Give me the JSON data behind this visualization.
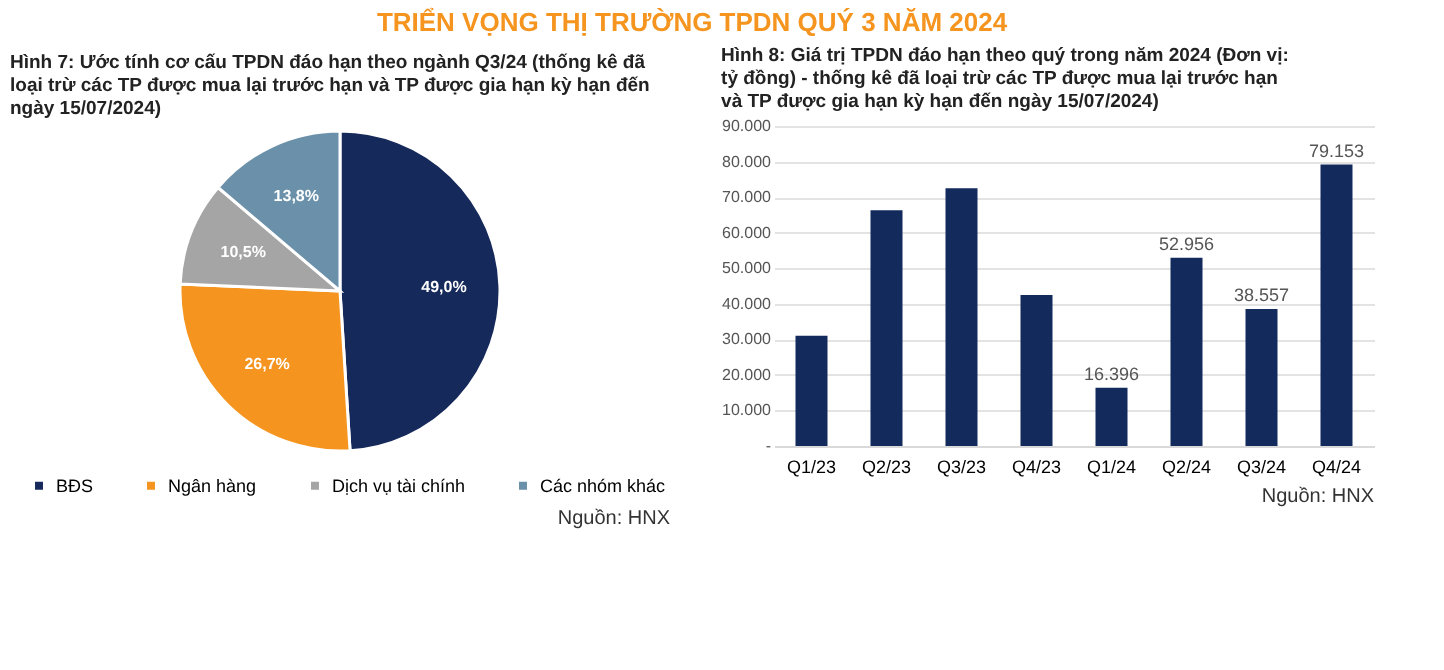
{
  "chart_data": [
    {
      "type": "pie",
      "title": "TRIỂN VỌNG THỊ TRƯỜNG TPDN QUÝ 3 NĂM 2024",
      "subtitle": "Hình 7: Ước tính cơ cấu TPDN đáo hạn theo ngành Q3/24 (thống kê đã loại trừ các TP được mua lại trước hạn và TP được gia hạn kỳ hạn đến ngày 15/07/2024)",
      "categories": [
        "BĐS",
        "Ngân hàng",
        "Dịch vụ tài chính",
        "Các nhóm khác"
      ],
      "values": [
        49.0,
        26.7,
        10.5,
        13.8
      ],
      "value_labels": [
        "49,0%",
        "26,7%",
        "10,5%",
        "13,8%"
      ],
      "colors": [
        "#15295b",
        "#f5951f",
        "#a5a5a5",
        "#6a90aa"
      ],
      "legend": "bottom",
      "annotations": [
        "Nguồn: HNX"
      ]
    },
    {
      "type": "bar",
      "title": "Hình 8: Giá trị TPDN đáo hạn theo quý trong năm 2024 (Đơn vị: tỷ đồng) - thống kê đã loại trừ các TP được mua lại trước hạn và TP được gia hạn kỳ hạn đến ngày 15/07/2024)",
      "categories": [
        "Q1/23",
        "Q2/23",
        "Q3/23",
        "Q4/23",
        "Q1/24",
        "Q2/24",
        "Q3/24",
        "Q4/24"
      ],
      "values": [
        31000,
        66300,
        72500,
        42500,
        16396,
        52956,
        38557,
        79153
      ],
      "value_labels": [
        null,
        null,
        null,
        null,
        "16.396",
        "52.956",
        "38.557",
        "79.153"
      ],
      "color": "#132a5c",
      "ylim": [
        0,
        90000
      ],
      "yticks": [
        {
          "value": 0,
          "label": "-"
        },
        {
          "value": 10000,
          "label": "10.000"
        },
        {
          "value": 20000,
          "label": "20.000"
        },
        {
          "value": 30000,
          "label": "30.000"
        },
        {
          "value": 40000,
          "label": "40.000"
        },
        {
          "value": 50000,
          "label": "50.000"
        },
        {
          "value": 60000,
          "label": "60.000"
        },
        {
          "value": 70000,
          "label": "70.000"
        },
        {
          "value": 80000,
          "label": "80.000"
        },
        {
          "value": 90000,
          "label": "90.000"
        }
      ],
      "grid": "y",
      "annotations": [
        "Nguồn: HNX"
      ]
    }
  ]
}
